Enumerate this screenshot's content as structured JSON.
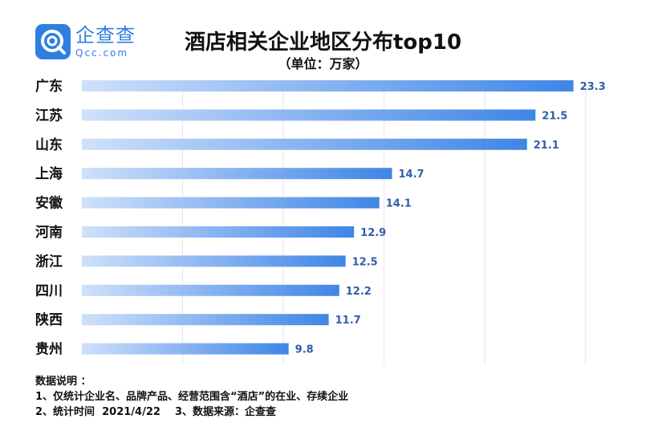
{
  "logo": {
    "name_cn": "企查查",
    "name_en": "Qcc.com"
  },
  "chart_data": {
    "type": "bar",
    "orientation": "horizontal",
    "title": "酒店相关企业地区分布top10",
    "subtitle": "（单位：万家）",
    "categories": [
      "广东",
      "江苏",
      "山东",
      "上海",
      "安徽",
      "河南",
      "浙江",
      "四川",
      "陕西",
      "贵州"
    ],
    "values": [
      23.3,
      21.5,
      21.1,
      14.7,
      14.1,
      12.9,
      12.5,
      12.2,
      11.7,
      9.8
    ],
    "value_labels": [
      "23.3",
      "21.5",
      "21.1",
      "14.7",
      "14.1",
      "12.9",
      "12.5",
      "12.2",
      "11.7",
      "9.8"
    ],
    "xlim": [
      0,
      25
    ],
    "grid": true,
    "colors": {
      "bar_start": "#cfe0fb",
      "bar_end": "#3f86e6",
      "label": "#2f5ea8"
    }
  },
  "notes": {
    "heading": "数据说明 ：",
    "line1": "1、仅统计企业名、品牌产品、经营范围含“酒店”的在业、存续企业",
    "line2": "2、统计时间  2021/4/22    3、数据来源：企查查"
  }
}
